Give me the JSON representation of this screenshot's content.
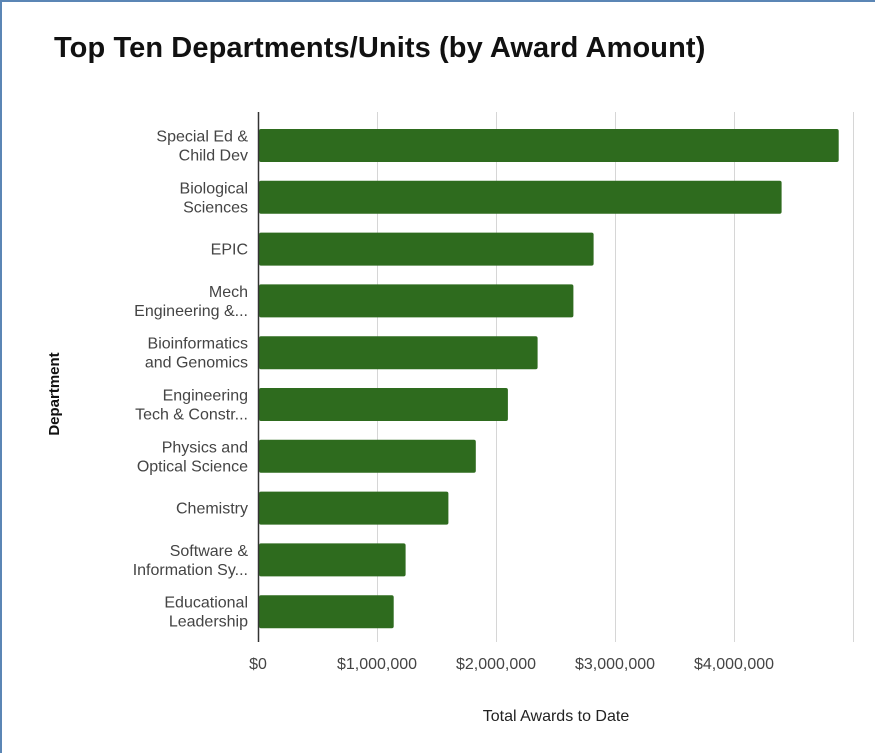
{
  "chart_data": {
    "type": "bar",
    "orientation": "horizontal",
    "title": "Top Ten Departments/Units (by Award Amount)",
    "xlabel": "Total Awards to Date",
    "ylabel": "Department",
    "categories": [
      [
        "Special Ed &",
        "Child Dev"
      ],
      [
        "Biological",
        "Sciences"
      ],
      [
        "EPIC"
      ],
      [
        "Mech",
        "Engineering &..."
      ],
      [
        "Bioinformatics",
        "and Genomics"
      ],
      [
        "Engineering",
        "Tech & Constr..."
      ],
      [
        "Physics and",
        "Optical Science"
      ],
      [
        "Chemistry"
      ],
      [
        "Software &",
        "Information Sy..."
      ],
      [
        "Educational",
        "Leadership"
      ]
    ],
    "values": [
      4880000,
      4400000,
      2820000,
      2650000,
      2350000,
      2100000,
      1830000,
      1600000,
      1240000,
      1140000
    ],
    "xlim": [
      0,
      5000000
    ],
    "xticks": [
      0,
      1000000,
      2000000,
      3000000,
      4000000
    ],
    "xtick_labels": [
      "$0",
      "$1,000,000",
      "$2,000,000",
      "$3,000,000",
      "$4,000,000"
    ],
    "grid": true,
    "bar_color": "#2e6b1e"
  }
}
